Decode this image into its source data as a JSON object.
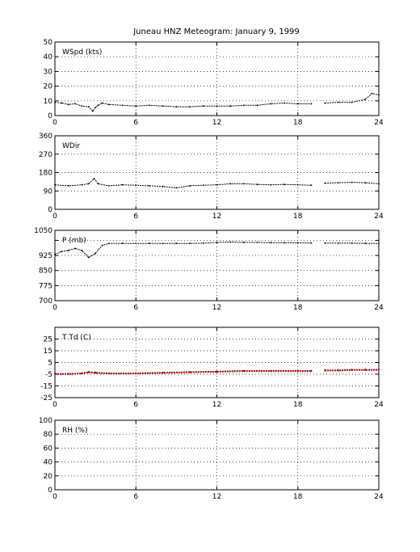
{
  "title": "Juneau HNZ Meteogram:    January  9, 1999",
  "chart_data": [
    {
      "type": "scatter",
      "label": "WSpd (kts)",
      "xlim": [
        0,
        24
      ],
      "xticks": [
        0,
        6,
        12,
        18,
        24
      ],
      "ylim": [
        0,
        50
      ],
      "yticks": [
        0,
        10,
        20,
        30,
        40,
        50
      ],
      "grid": true,
      "series": [
        {
          "color": "#000000",
          "points": [
            [
              0,
              9
            ],
            [
              0.5,
              8.5
            ],
            [
              1,
              7.5
            ],
            [
              1.5,
              8
            ],
            [
              2,
              6.5
            ],
            [
              2.5,
              6
            ],
            [
              2.8,
              3
            ],
            [
              3,
              5.5
            ],
            [
              3.2,
              7
            ],
            [
              3.5,
              8.5
            ],
            [
              4,
              7.5
            ],
            [
              5,
              7
            ],
            [
              6,
              6.5
            ],
            [
              7,
              7
            ],
            [
              8,
              6.5
            ],
            [
              9,
              6
            ],
            [
              10,
              6
            ],
            [
              11,
              6.5
            ],
            [
              12,
              6.5
            ],
            [
              13,
              6.5
            ],
            [
              14,
              7
            ],
            [
              15,
              7
            ],
            [
              16,
              8
            ],
            [
              17,
              8.5
            ],
            [
              18,
              8
            ],
            [
              19,
              8
            ],
            [
              19.5,
              null
            ],
            [
              20,
              8.5
            ],
            [
              21,
              9
            ],
            [
              22,
              9
            ],
            [
              23,
              11
            ],
            [
              23.5,
              15
            ],
            [
              24,
              14
            ]
          ]
        }
      ]
    },
    {
      "type": "scatter",
      "label": "WDir",
      "xlim": [
        0,
        24
      ],
      "xticks": [
        0,
        6,
        12,
        18,
        24
      ],
      "ylim": [
        0,
        360
      ],
      "yticks": [
        0,
        90,
        180,
        270,
        360
      ],
      "grid": true,
      "series": [
        {
          "color": "#000000",
          "points": [
            [
              0,
              120
            ],
            [
              1,
              115
            ],
            [
              2,
              120
            ],
            [
              2.5,
              125
            ],
            [
              2.9,
              150
            ],
            [
              3.2,
              125
            ],
            [
              4,
              115
            ],
            [
              5,
              120
            ],
            [
              6,
              118
            ],
            [
              7,
              115
            ],
            [
              8,
              112
            ],
            [
              9,
              105
            ],
            [
              10,
              115
            ],
            [
              11,
              118
            ],
            [
              12,
              120
            ],
            [
              13,
              125
            ],
            [
              14,
              125
            ],
            [
              15,
              122
            ],
            [
              16,
              120
            ],
            [
              17,
              122
            ],
            [
              18,
              120
            ],
            [
              19,
              118
            ],
            [
              19.5,
              null
            ],
            [
              20,
              128
            ],
            [
              21,
              130
            ],
            [
              22,
              132
            ],
            [
              23,
              130
            ],
            [
              24,
              125
            ]
          ]
        }
      ]
    },
    {
      "type": "scatter",
      "label": "P (mb)",
      "xlim": [
        0,
        24
      ],
      "xticks": [
        0,
        6,
        12,
        18,
        24
      ],
      "ylim": [
        700,
        1050
      ],
      "yticks": [
        700,
        775,
        850,
        925,
        1000,
        1050
      ],
      "ytick_labels": [
        "700",
        "775",
        "850",
        "925",
        "",
        "1050"
      ],
      "grid": true,
      "series": [
        {
          "color": "#000000",
          "points": [
            [
              0,
              930
            ],
            [
              0.5,
              945
            ],
            [
              1,
              950
            ],
            [
              1.5,
              960
            ],
            [
              2,
              950
            ],
            [
              2.5,
              915
            ],
            [
              3,
              935
            ],
            [
              3.5,
              975
            ],
            [
              4,
              985
            ],
            [
              5,
              985
            ],
            [
              6,
              985
            ],
            [
              7,
              985
            ],
            [
              8,
              985
            ],
            [
              9,
              985
            ],
            [
              10,
              985
            ],
            [
              11,
              986
            ],
            [
              12,
              990
            ],
            [
              13,
              992
            ],
            [
              14,
              990
            ],
            [
              15,
              990
            ],
            [
              16,
              989
            ],
            [
              17,
              988
            ],
            [
              18,
              988
            ],
            [
              19,
              987
            ],
            [
              19.5,
              null
            ],
            [
              20,
              987
            ],
            [
              21,
              986
            ],
            [
              22,
              986
            ],
            [
              23,
              985
            ],
            [
              24,
              985
            ]
          ]
        }
      ]
    },
    {
      "type": "scatter",
      "label": "T Td (C)",
      "xlim": [
        0,
        24
      ],
      "xticks": [
        0,
        6,
        12,
        18,
        24
      ],
      "ylim": [
        -25,
        35
      ],
      "yticks": [
        -25,
        -15,
        -5,
        5,
        15,
        25
      ],
      "grid": true,
      "series": [
        {
          "color": "#000000",
          "points": [
            [
              0,
              -4.5
            ],
            [
              1,
              -4.5
            ],
            [
              2,
              -4
            ],
            [
              2.5,
              -3
            ],
            [
              3,
              -3.5
            ],
            [
              4,
              -4
            ],
            [
              6,
              -4
            ],
            [
              8,
              -3.5
            ],
            [
              10,
              -3
            ],
            [
              12,
              -2.5
            ],
            [
              14,
              -2
            ],
            [
              16,
              -2
            ],
            [
              18,
              -2
            ],
            [
              19,
              -2
            ],
            [
              19.5,
              null
            ],
            [
              20,
              -1.5
            ],
            [
              21,
              -1.5
            ],
            [
              22,
              -1
            ],
            [
              23,
              -1
            ],
            [
              24,
              -1
            ]
          ]
        },
        {
          "color": "#cc0000",
          "points": [
            [
              0,
              -5
            ],
            [
              1,
              -5
            ],
            [
              2,
              -4.5
            ],
            [
              2.5,
              -3.5
            ],
            [
              3,
              -4
            ],
            [
              4,
              -4.5
            ],
            [
              6,
              -4.5
            ],
            [
              8,
              -4
            ],
            [
              10,
              -3.5
            ],
            [
              12,
              -3
            ],
            [
              14,
              -2.5
            ],
            [
              16,
              -2.5
            ],
            [
              18,
              -2.5
            ],
            [
              19,
              -2.5
            ],
            [
              19.5,
              null
            ],
            [
              20,
              -2
            ],
            [
              21,
              -2
            ],
            [
              22,
              -1.5
            ],
            [
              23,
              -1.5
            ],
            [
              24,
              -1.5
            ]
          ]
        }
      ]
    },
    {
      "type": "scatter",
      "label": "RH (%)",
      "xlim": [
        0,
        24
      ],
      "xticks": [
        0,
        6,
        12,
        18,
        24
      ],
      "ylim": [
        0,
        100
      ],
      "yticks": [
        0,
        20,
        40,
        60,
        80,
        100
      ],
      "grid": true,
      "series": []
    }
  ]
}
